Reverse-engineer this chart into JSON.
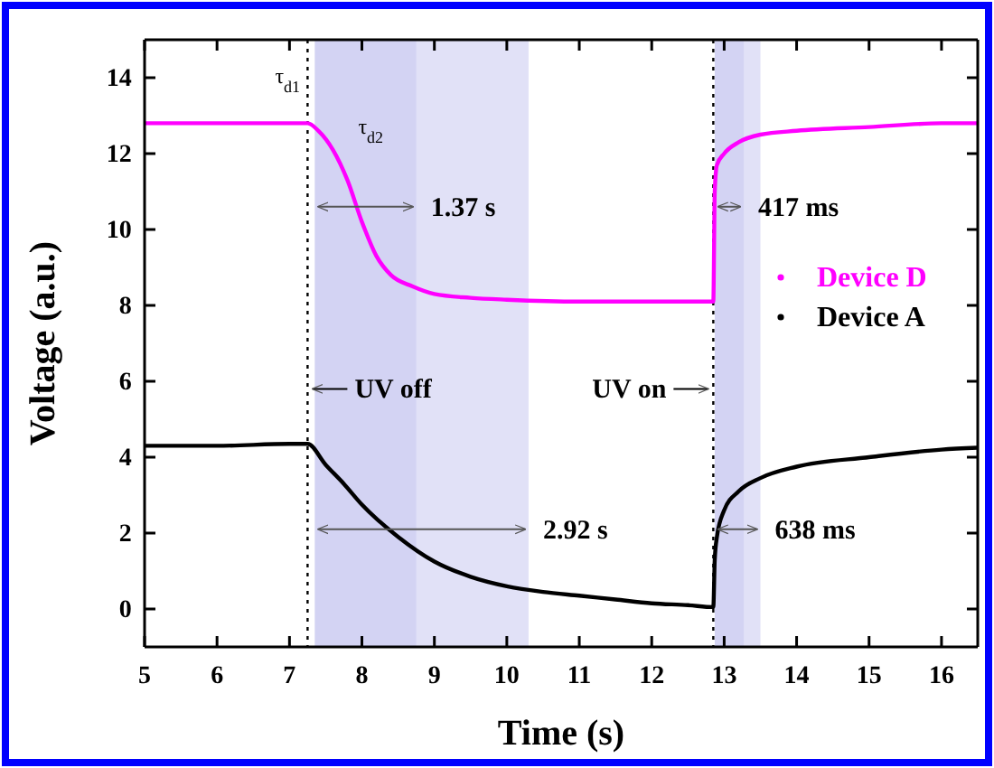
{
  "chart_data": {
    "type": "line",
    "xlabel": "Time (s)",
    "ylabel": "Voltage (a.u.)",
    "xlim": [
      5,
      16.5
    ],
    "xticks": [
      5,
      6,
      7,
      8,
      9,
      10,
      11,
      12,
      13,
      14,
      15,
      16
    ],
    "ylim": [
      -1,
      15
    ],
    "yticks": [
      0,
      2,
      4,
      6,
      8,
      10,
      12,
      14
    ],
    "legend": "right",
    "series": [
      {
        "name": "Device D",
        "color": "#ff00ff",
        "x": [
          5,
          6,
          7,
          7.25,
          7.4,
          7.6,
          7.8,
          8,
          8.2,
          8.4,
          8.7,
          9,
          9.5,
          10,
          11,
          12,
          12.85,
          12.87,
          12.9,
          13,
          13.2,
          13.5,
          14,
          15,
          16,
          16.5
        ],
        "values": [
          12.8,
          12.8,
          12.8,
          12.8,
          12.6,
          12.1,
          11.3,
          10.2,
          9.3,
          8.8,
          8.5,
          8.3,
          8.2,
          8.15,
          8.1,
          8.1,
          8.1,
          11.0,
          11.7,
          12.0,
          12.3,
          12.5,
          12.6,
          12.7,
          12.8,
          12.8
        ]
      },
      {
        "name": "Device A",
        "color": "#000000",
        "x": [
          5,
          6,
          7,
          7.25,
          7.5,
          7.75,
          8,
          8.5,
          9,
          9.5,
          10,
          10.5,
          11,
          11.5,
          12,
          12.5,
          12.85,
          12.87,
          12.9,
          13,
          13.2,
          13.5,
          14,
          15,
          16,
          16.5
        ],
        "values": [
          4.3,
          4.3,
          4.35,
          4.35,
          3.8,
          3.3,
          2.75,
          1.9,
          1.25,
          0.85,
          0.6,
          0.45,
          0.35,
          0.25,
          0.15,
          0.1,
          0.05,
          1.3,
          1.9,
          2.6,
          3.1,
          3.45,
          3.75,
          4.0,
          4.2,
          4.25
        ]
      }
    ],
    "ref_lines": [
      {
        "axis": "x",
        "value": 7.25,
        "label": "UV off",
        "line_style": "dotted",
        "color": "#000000"
      },
      {
        "axis": "x",
        "value": 12.85,
        "label": "UV on",
        "line_style": "dotted",
        "color": "#000000"
      }
    ],
    "bands": [
      {
        "axis": "x",
        "from": 7.35,
        "to": 8.75,
        "color": "#c8c8f0"
      },
      {
        "axis": "x",
        "from": 12.87,
        "to": 13.27,
        "color": "#c8c8f0"
      },
      {
        "axis": "x",
        "from": 7.35,
        "to": 10.3,
        "color": "#c8c8f0"
      },
      {
        "axis": "x",
        "from": 12.87,
        "to": 13.5,
        "color": "#c8c8f0"
      }
    ],
    "annotations": [
      {
        "text": "1.37 s",
        "x": 8.75,
        "y": 10.6
      },
      {
        "text": "417 ms",
        "x": 13.27,
        "y": 10.6
      },
      {
        "text": "2.92 s",
        "x": 10.3,
        "y": 2.1
      },
      {
        "text": "638 ms",
        "x": 13.5,
        "y": 2.1
      },
      "τ$_{d1}$",
      "τ$_{d2}$"
    ]
  }
}
